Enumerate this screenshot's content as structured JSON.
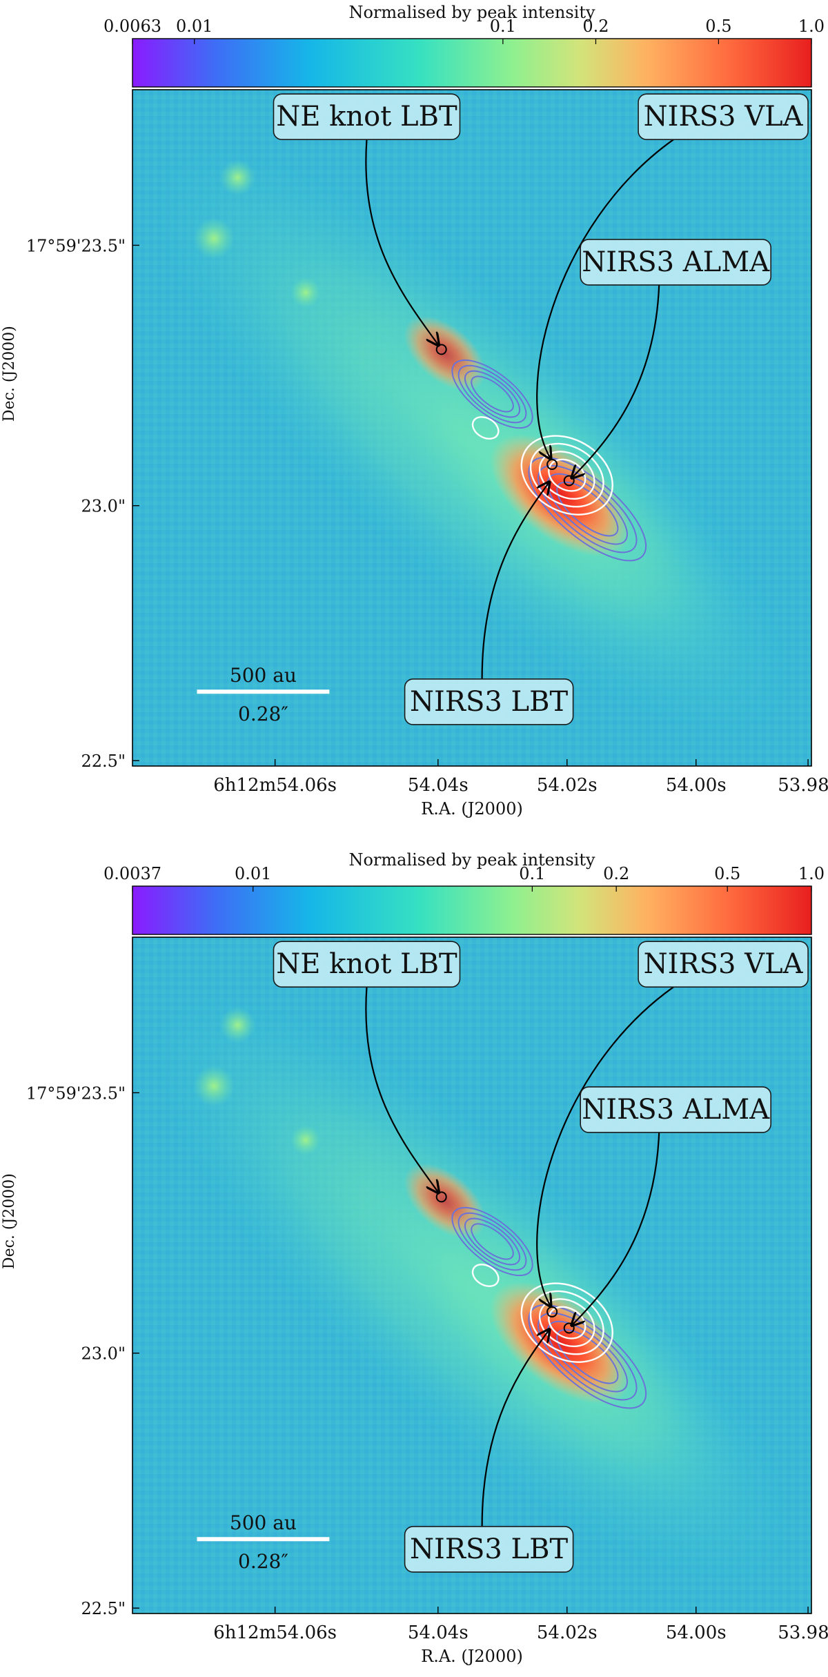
{
  "chart_data": [
    {
      "type": "heatmap",
      "colorbar": {
        "label": "Normalised by peak intensity",
        "scale": "log",
        "range": [
          0.0063,
          1.0
        ],
        "ticks": [
          {
            "value": 0.0063,
            "label": "0.0063"
          },
          {
            "value": 0.01,
            "label": "0.01"
          },
          {
            "value": 0.1,
            "label": "0.1"
          },
          {
            "value": 0.2,
            "label": "0.2"
          },
          {
            "value": 0.5,
            "label": "0.5"
          },
          {
            "value": 1.0,
            "label": "1.0"
          }
        ]
      },
      "xlabel": "R.A. (J2000)",
      "ylabel": "Dec. (J2000)",
      "xticks": [
        "6h12m54.06s",
        "54.04s",
        "54.02s",
        "54.00s",
        "53.98s"
      ],
      "yticks": [
        "17°59'23.5\"",
        "23.0\"",
        "22.5\""
      ],
      "annotations": [
        "NE knot LBT",
        "NIRS3 VLA",
        "NIRS3 ALMA",
        "NIRS3 LBT"
      ],
      "scalebar": {
        "top": "500 au",
        "bottom": "0.28″"
      }
    },
    {
      "type": "heatmap",
      "colorbar": {
        "label": "Normalised by peak intensity",
        "scale": "log",
        "range": [
          0.0037,
          1.0
        ],
        "ticks": [
          {
            "value": 0.0037,
            "label": "0.0037"
          },
          {
            "value": 0.01,
            "label": "0.01"
          },
          {
            "value": 0.1,
            "label": "0.1"
          },
          {
            "value": 0.2,
            "label": "0.2"
          },
          {
            "value": 0.5,
            "label": "0.5"
          },
          {
            "value": 1.0,
            "label": "1.0"
          }
        ]
      },
      "xlabel": "R.A. (J2000)",
      "ylabel": "Dec. (J2000)",
      "xticks": [
        "6h12m54.06s",
        "54.04s",
        "54.02s",
        "54.00s",
        "53.98s"
      ],
      "yticks": [
        "17°59'23.5\"",
        "23.0\"",
        "22.5\""
      ],
      "annotations": [
        "NE knot LBT",
        "NIRS3 VLA",
        "NIRS3 ALMA",
        "NIRS3 LBT"
      ],
      "scalebar": {
        "top": "500 au",
        "bottom": "0.28″"
      }
    }
  ]
}
